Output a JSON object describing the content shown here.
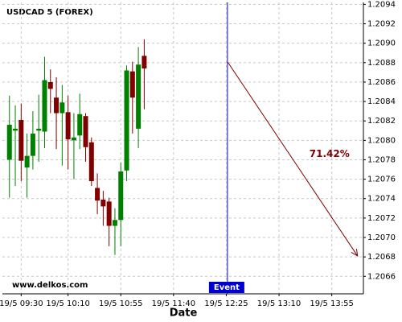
{
  "chart_data": {
    "type": "candlestick",
    "title": "USDCAD 5 (FOREX)",
    "xlabel": "Date",
    "watermark": "www.delkos.com",
    "x": [
      560,
      565,
      570,
      575,
      580,
      585,
      590,
      595,
      600,
      605,
      610,
      615,
      620,
      625,
      630,
      635,
      640,
      645,
      650,
      655,
      660,
      665,
      670,
      675
    ],
    "open": [
      1.2078,
      1.2081,
      1.20821,
      1.20772,
      1.20784,
      1.2081,
      1.20809,
      1.2086,
      1.20844,
      1.20828,
      1.20829,
      1.208,
      1.20805,
      1.20825,
      1.20798,
      1.20751,
      1.20739,
      1.20737,
      1.20712,
      1.20718,
      1.20769,
      1.20871,
      1.20812,
      1.20887
    ],
    "high": [
      1.20846,
      1.20836,
      1.20838,
      1.20807,
      1.2083,
      1.20847,
      1.20886,
      1.20873,
      1.20865,
      1.20857,
      1.20846,
      1.20828,
      1.20848,
      1.20828,
      1.20803,
      1.20766,
      1.20748,
      1.20741,
      1.2073,
      1.20777,
      1.20877,
      1.20881,
      1.20896,
      1.20904
    ],
    "low": [
      1.20741,
      1.20753,
      1.20758,
      1.20741,
      1.2077,
      1.20778,
      1.20792,
      1.20828,
      1.20791,
      1.20774,
      1.2077,
      1.2076,
      1.20791,
      1.20778,
      1.20753,
      1.20724,
      1.20712,
      1.20691,
      1.20682,
      1.20691,
      1.20758,
      1.20807,
      1.20792,
      1.20832
    ],
    "close": [
      1.20816,
      1.20812,
      1.20779,
      1.20784,
      1.20807,
      1.20812,
      1.20862,
      1.20853,
      1.20828,
      1.20839,
      1.20801,
      1.20803,
      1.20827,
      1.20793,
      1.20758,
      1.20738,
      1.20732,
      1.20712,
      1.20718,
      1.20768,
      1.20872,
      1.20844,
      1.20878,
      1.20874
    ],
    "up_color": "#008000",
    "down_color": "#800000",
    "xlim": [
      554,
      862
    ],
    "ylim": [
      1.20642,
      1.20942
    ],
    "xticks": [
      {
        "value": 570,
        "label": "19/5 09:30"
      },
      {
        "value": 610,
        "label": "19/5 10:10"
      },
      {
        "value": 655,
        "label": "19/5 10:55"
      },
      {
        "value": 700,
        "label": "19/5 11:40"
      },
      {
        "value": 745,
        "label": "19/5 12:25"
      },
      {
        "value": 790,
        "label": "19/5 13:10"
      },
      {
        "value": 835,
        "label": "19/5 13:55"
      }
    ],
    "yticks": [
      1.2066,
      1.2068,
      {
        "value": 1.207,
        "label": "1.2070"
      },
      1.2072,
      1.2074,
      1.2076,
      1.2078,
      {
        "value": 1.208,
        "label": "1.2080"
      },
      1.2082,
      1.2084,
      1.2086,
      1.2088,
      {
        "value": 1.209,
        "label": "1.2090"
      },
      1.2092,
      1.2094
    ],
    "grid": true,
    "event": {
      "x": 746,
      "label": "Event",
      "color": "#0000cc"
    },
    "projection": {
      "x": [
        746,
        857
      ],
      "y": [
        1.20881,
        1.20681
      ],
      "label": "71.42%",
      "color": "#800000"
    }
  }
}
